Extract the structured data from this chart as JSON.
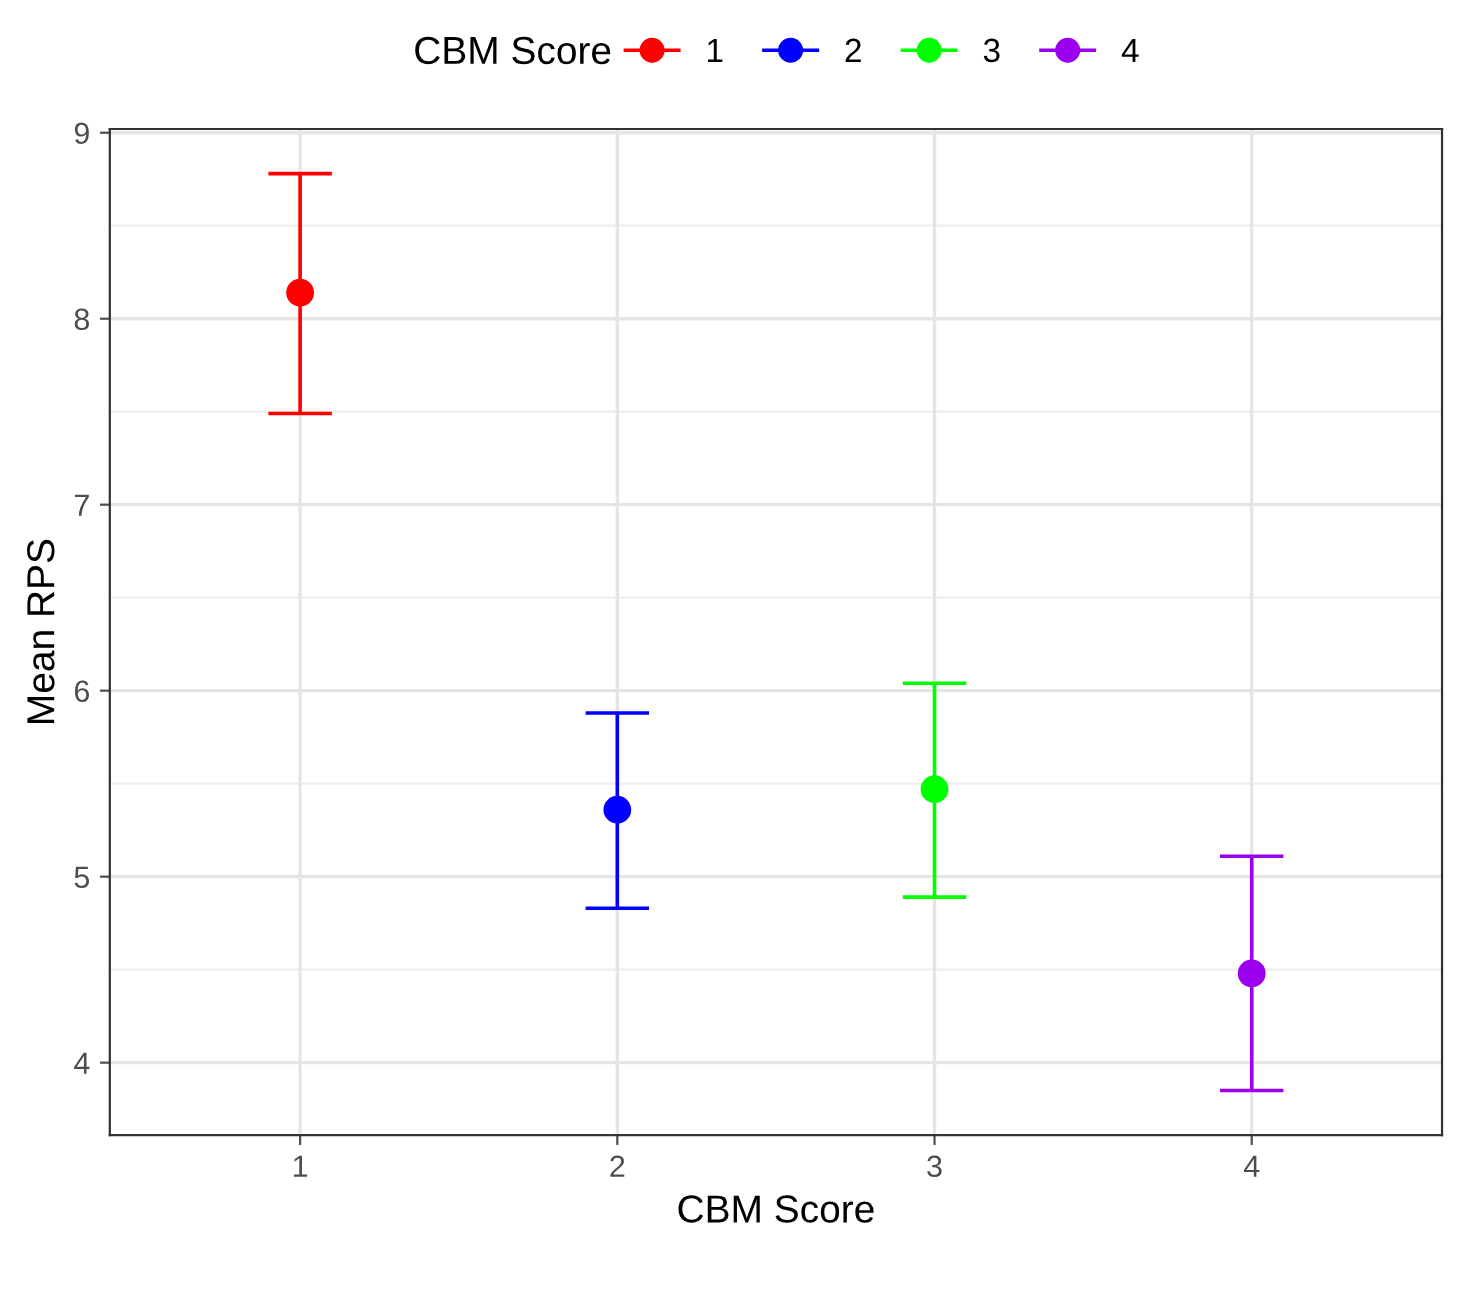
{
  "chart_data": {
    "type": "scatter",
    "xlabel": "CBM Score",
    "ylabel": "Mean RPS",
    "legend_title": "CBM Score",
    "legend": "top",
    "categories": [
      "1",
      "2",
      "3",
      "4"
    ],
    "series": [
      {
        "name": "1",
        "color": "#ff0000",
        "values": [
          8.14,
          null,
          null,
          null
        ],
        "errors": [
          [
            7.49,
            8.78
          ],
          null,
          null,
          null
        ]
      },
      {
        "name": "2",
        "color": "#0000ff",
        "values": [
          null,
          5.36,
          null,
          null
        ],
        "errors": [
          null,
          [
            4.83,
            5.88
          ],
          null,
          null
        ]
      },
      {
        "name": "3",
        "color": "#00ff00",
        "values": [
          null,
          null,
          5.47,
          null
        ],
        "errors": [
          null,
          null,
          [
            4.89,
            6.04
          ],
          null
        ]
      },
      {
        "name": "4",
        "color": "#9b00ee",
        "values": [
          null,
          null,
          null,
          4.48
        ],
        "errors": [
          null,
          null,
          null,
          [
            3.85,
            5.11
          ]
        ]
      }
    ],
    "ylim": [
      3.61,
      9.02
    ],
    "yticks": [
      4,
      5,
      6,
      7,
      8,
      9
    ],
    "grid": true,
    "marker": "circle"
  }
}
